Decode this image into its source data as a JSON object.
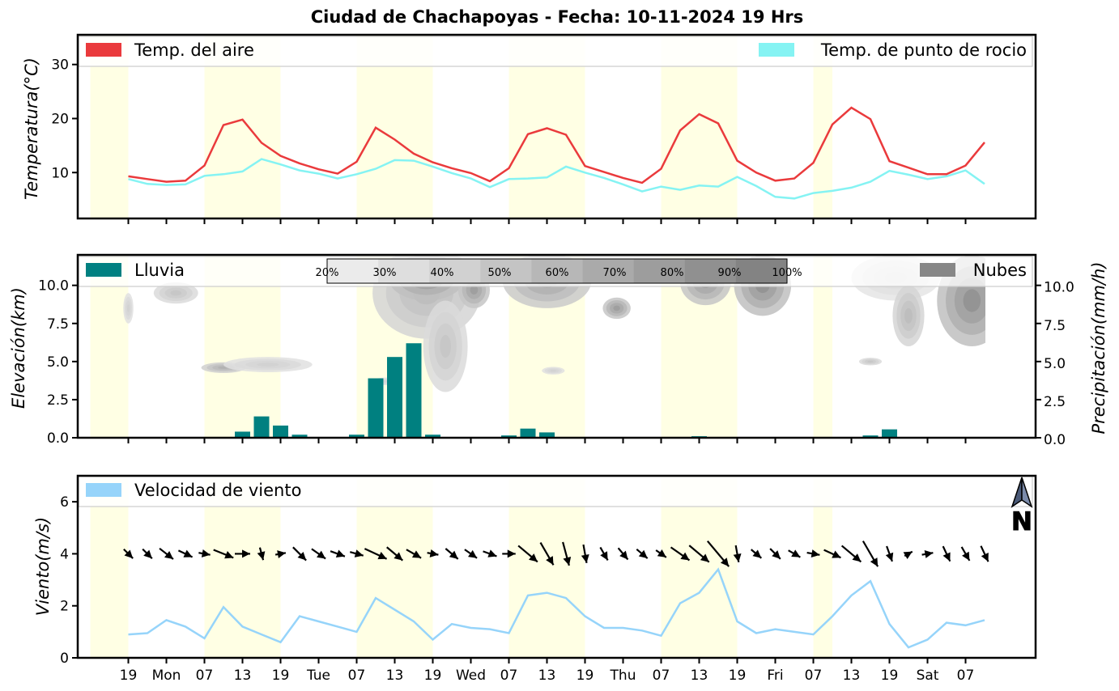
{
  "title": "Ciudad de Chachapoyas   -   Fecha: 10-11-2024 19 Hrs",
  "x_ticks": [
    "19",
    "Mon",
    "07",
    "13",
    "19",
    "Tue",
    "07",
    "13",
    "19",
    "Wed",
    "07",
    "13",
    "19",
    "Thu",
    "07",
    "13",
    "19",
    "Fri",
    "07",
    "13",
    "19",
    "Sat",
    "07"
  ],
  "daylight_bands": [
    [
      -6,
      0
    ],
    [
      12,
      24
    ],
    [
      36,
      48
    ],
    [
      60,
      72
    ],
    [
      84,
      96
    ],
    [
      108,
      111
    ]
  ],
  "colorbar_labels": [
    "20%",
    "30%",
    "40%",
    "50%",
    "60%",
    "70%",
    "80%",
    "90%",
    "100%"
  ],
  "north_label": "N",
  "colors": {
    "air_temp": "#ea3a3c",
    "dew_point": "#85f3f3",
    "rain": "#008080",
    "clouds": "#878787",
    "wind": "#96d4fa",
    "daylight": "#ffffe4",
    "arrow": "#000000"
  },
  "chart_data": [
    {
      "type": "line",
      "ylabel": "Temperatura(°C)",
      "ylim": [
        1.5,
        35.5
      ],
      "yticks": [
        10,
        20,
        30
      ],
      "x_unit": "hours since 10-11-2024 19 Hrs",
      "x": [
        0,
        3,
        6,
        9,
        12,
        15,
        18,
        21,
        24,
        27,
        30,
        33,
        36,
        39,
        42,
        45,
        48,
        51,
        54,
        57,
        60,
        63,
        66,
        69,
        72,
        75,
        78,
        81,
        84,
        87,
        90,
        93,
        96,
        99,
        102,
        105,
        108,
        111,
        114,
        117,
        120,
        123,
        126,
        129,
        132,
        135,
        138
      ],
      "legend_left": "Temp. del aire",
      "legend_right": "Temp. de punto de rocio",
      "series": [
        {
          "name": "Temp. del aire",
          "values": [
            9.3,
            8.8,
            8.3,
            8.5,
            11.3,
            18.8,
            19.8,
            15.5,
            13.1,
            11.7,
            10.6,
            9.8,
            12.0,
            18.3,
            16.1,
            13.5,
            11.9,
            10.8,
            9.9,
            8.4,
            10.8,
            17.1,
            18.2,
            17.0,
            11.2,
            10.1,
            9.0,
            8.1,
            10.7,
            17.8,
            20.8,
            19.1,
            12.2,
            10.0,
            8.5,
            8.9,
            11.8,
            18.9,
            22.0,
            19.9,
            12.1,
            10.9,
            9.7,
            9.7,
            11.3,
            15.6,
            null
          ]
        },
        {
          "name": "Temp. de punto de rocio",
          "values": [
            8.8,
            7.9,
            7.7,
            7.8,
            9.4,
            9.7,
            10.2,
            12.5,
            11.5,
            10.4,
            9.8,
            8.9,
            9.7,
            10.7,
            12.3,
            12.2,
            11.1,
            9.9,
            8.9,
            7.3,
            8.8,
            8.9,
            9.1,
            11.1,
            10.0,
            9.0,
            7.8,
            6.5,
            7.4,
            6.8,
            7.6,
            7.4,
            9.2,
            7.5,
            5.5,
            5.2,
            6.2,
            6.6,
            7.2,
            8.3,
            10.3,
            9.6,
            8.8,
            9.3,
            10.4,
            7.9,
            null
          ]
        }
      ]
    },
    {
      "type": "bar",
      "ylabel": "Elevación(km)",
      "ylabel_right": "Precipitación(mm/h)",
      "ylim": [
        0,
        12
      ],
      "yticks": [
        0.0,
        2.5,
        5.0,
        7.5,
        10.0
      ],
      "yticks_right": [
        0.0,
        2.5,
        5.0,
        7.5,
        10.0
      ],
      "legend_left": "Lluvia",
      "legend_right": "Nubes",
      "series": [
        {
          "name": "Lluvia",
          "x": [
            18,
            21,
            24,
            27,
            36,
            39,
            42,
            45,
            48,
            60,
            63,
            66,
            69,
            87,
            90,
            93,
            96,
            117,
            120
          ],
          "values": [
            0.4,
            1.4,
            0.8,
            0.2,
            0.2,
            3.9,
            5.3,
            6.2,
            0.2,
            0.15,
            0.6,
            0.35,
            0.05,
            0.05,
            0.1,
            0.05,
            0.05,
            0.15,
            0.55
          ]
        }
      ],
      "clouds": [
        {
          "x": 0,
          "y": 8.5,
          "rx": 0.8,
          "ry": 1.0,
          "d": 0.3
        },
        {
          "x": 7.5,
          "y": 9.5,
          "rx": 3.5,
          "ry": 0.7,
          "d": 0.4
        },
        {
          "x": 15,
          "y": 4.6,
          "rx": 3.5,
          "ry": 0.35,
          "d": 0.6
        },
        {
          "x": 22,
          "y": 4.8,
          "rx": 7.0,
          "ry": 0.5,
          "d": 0.3
        },
        {
          "x": 40.5,
          "y": 3.7,
          "rx": 2.0,
          "ry": 0.25,
          "d": 0.25
        },
        {
          "x": 47,
          "y": 9.5,
          "rx": 8.5,
          "ry": 3.0,
          "d": 0.5
        },
        {
          "x": 47,
          "y": 10.5,
          "rx": 6.0,
          "ry": 1.5,
          "d": 0.9
        },
        {
          "x": 50,
          "y": 6.0,
          "rx": 3.5,
          "ry": 3.0,
          "d": 0.4
        },
        {
          "x": 54.5,
          "y": 9.7,
          "rx": 2.5,
          "ry": 1.2,
          "d": 0.8
        },
        {
          "x": 66,
          "y": 10.3,
          "rx": 7.0,
          "ry": 1.8,
          "d": 0.7
        },
        {
          "x": 67,
          "y": 4.4,
          "rx": 1.8,
          "ry": 0.25,
          "d": 0.3
        },
        {
          "x": 77,
          "y": 8.5,
          "rx": 2.2,
          "ry": 0.7,
          "d": 0.8
        },
        {
          "x": 91,
          "y": 10.2,
          "rx": 4.0,
          "ry": 1.5,
          "d": 0.8
        },
        {
          "x": 100,
          "y": 10.0,
          "rx": 4.5,
          "ry": 2.0,
          "d": 0.9
        },
        {
          "x": 117,
          "y": 5.0,
          "rx": 1.8,
          "ry": 0.25,
          "d": 0.4
        },
        {
          "x": 121,
          "y": 10.5,
          "rx": 7.0,
          "ry": 1.5,
          "d": 0.2
        },
        {
          "x": 123,
          "y": 8.0,
          "rx": 2.5,
          "ry": 2.0,
          "d": 0.5
        },
        {
          "x": 133,
          "y": 9.0,
          "rx": 5.5,
          "ry": 3.0,
          "d": 0.9
        }
      ]
    },
    {
      "type": "line",
      "ylabel": "Viento(m/s)",
      "ylim": [
        0,
        7
      ],
      "yticks": [
        0,
        2,
        4,
        6
      ],
      "legend_left": "Velocidad de viento",
      "series": [
        {
          "name": "Velocidad de viento",
          "x": [
            0,
            3,
            6,
            9,
            12,
            15,
            18,
            21,
            24,
            27,
            30,
            33,
            36,
            39,
            42,
            45,
            48,
            51,
            54,
            57,
            60,
            63,
            66,
            69,
            72,
            75,
            78,
            81,
            84,
            87,
            90,
            93,
            96,
            99,
            102,
            105,
            108,
            111,
            114,
            117,
            120,
            123,
            126,
            129,
            132,
            135,
            138
          ],
          "values": [
            0.9,
            0.95,
            1.45,
            1.2,
            0.75,
            1.95,
            1.2,
            0.9,
            0.6,
            1.6,
            1.4,
            1.2,
            1.0,
            2.3,
            1.85,
            1.4,
            0.7,
            1.3,
            1.15,
            1.1,
            0.95,
            2.4,
            2.5,
            2.3,
            1.6,
            1.15,
            1.15,
            1.05,
            0.85,
            2.1,
            2.5,
            3.4,
            1.4,
            0.95,
            1.1,
            1.0,
            0.9,
            1.6,
            2.4,
            2.95,
            1.3,
            0.4,
            0.7,
            1.35,
            1.25,
            1.45,
            null
          ]
        }
      ],
      "arrows": {
        "x": [
          0,
          3,
          6,
          9,
          12,
          15,
          18,
          21,
          24,
          27,
          30,
          33,
          36,
          39,
          42,
          45,
          48,
          51,
          54,
          57,
          60,
          63,
          66,
          69,
          72,
          75,
          78,
          81,
          84,
          87,
          90,
          93,
          96,
          99,
          102,
          105,
          108,
          111,
          114,
          117,
          120,
          123,
          126,
          129,
          132,
          135,
          138
        ],
        "speed": [
          0.9,
          0.95,
          1.45,
          1.2,
          0.75,
          1.95,
          1.2,
          0.9,
          0.6,
          1.6,
          1.4,
          1.2,
          1.0,
          2.3,
          1.85,
          1.4,
          0.7,
          1.3,
          1.15,
          1.1,
          0.95,
          2.4,
          2.5,
          2.3,
          1.6,
          1.15,
          1.15,
          1.05,
          0.85,
          2.1,
          2.5,
          3.4,
          1.4,
          0.95,
          1.1,
          1.0,
          0.9,
          1.6,
          2.4,
          2.95,
          1.3,
          0.4,
          0.7,
          1.35,
          1.25,
          1.45,
          null
        ],
        "direction_deg": [
          135,
          135,
          128,
          115,
          100,
          112,
          90,
          165,
          80,
          135,
          125,
          110,
          105,
          115,
          130,
          120,
          100,
          130,
          125,
          110,
          90,
          130,
          150,
          165,
          170,
          150,
          140,
          130,
          125,
          125,
          130,
          140,
          170,
          130,
          135,
          120,
          100,
          115,
          130,
          150,
          160,
          60,
          80,
          155,
          150,
          155,
          null
        ]
      }
    }
  ]
}
